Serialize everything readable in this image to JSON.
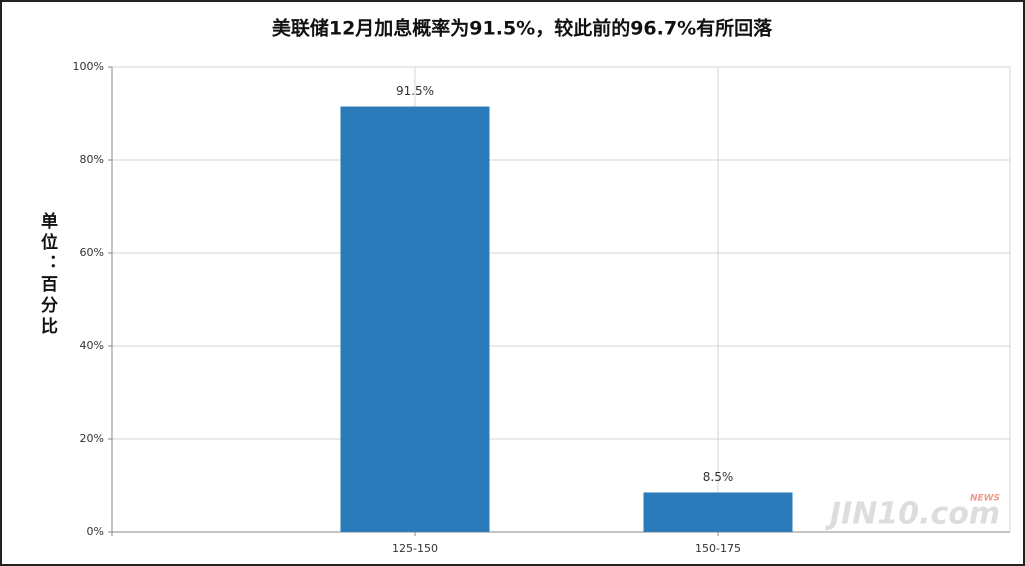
{
  "chart_data": {
    "type": "bar",
    "title": "美联储12月加息概率为91.5%，较此前的96.7%有所回落",
    "y_label": "单位：百分比",
    "categories": [
      null,
      "125-150",
      "150-175"
    ],
    "values": [
      null,
      91.5,
      8.5
    ],
    "value_labels": [
      null,
      "91.5%",
      "8.5%"
    ],
    "color": "#2b7bba",
    "ylim": [
      0,
      100
    ],
    "yticks": [
      {
        "value": 0,
        "label": "0%"
      },
      {
        "value": 20,
        "label": "20%"
      },
      {
        "value": 40,
        "label": "40%"
      },
      {
        "value": 60,
        "label": "60%"
      },
      {
        "value": 80,
        "label": "80%"
      },
      {
        "value": 100,
        "label": "100%"
      }
    ],
    "grid": true,
    "watermark": "JIN10.com",
    "watermark_badge": "NEWS"
  }
}
